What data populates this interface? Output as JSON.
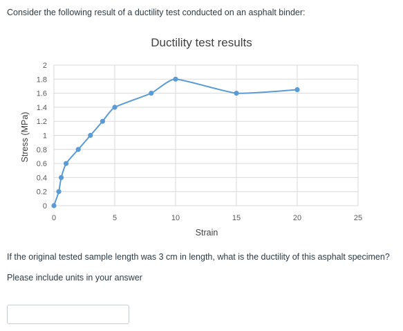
{
  "question": {
    "intro": "Consider the following result of a ductility test conducted on an asphalt binder:",
    "prompt": "If the original tested sample length was 3 cm in length, what is the ductility of this asphalt specimen?",
    "hint": "Please include units in your answer",
    "answer_value": ""
  },
  "chart_data": {
    "type": "scatter",
    "title": "Ductility test results",
    "xlabel": "Strain",
    "ylabel": "Stress (MPa)",
    "xlim": [
      0,
      25
    ],
    "ylim": [
      0,
      2
    ],
    "xticks": [
      "0",
      "5",
      "10",
      "15",
      "20",
      "25"
    ],
    "yticks": [
      "0",
      "0.2",
      "0.4",
      "0.6",
      "0.8",
      "1",
      "1.2",
      "1.4",
      "1.6",
      "1.8",
      "2"
    ],
    "grid": true,
    "smooth_line": true,
    "series_color": "#5b9bd5",
    "points": [
      {
        "x": 0,
        "y": 0
      },
      {
        "x": 0.4,
        "y": 0.2
      },
      {
        "x": 0.6,
        "y": 0.4
      },
      {
        "x": 1,
        "y": 0.6
      },
      {
        "x": 2,
        "y": 0.8
      },
      {
        "x": 3,
        "y": 1.0
      },
      {
        "x": 4,
        "y": 1.2
      },
      {
        "x": 5,
        "y": 1.4
      },
      {
        "x": 8,
        "y": 1.6
      },
      {
        "x": 10,
        "y": 1.8
      },
      {
        "x": 15,
        "y": 1.6
      },
      {
        "x": 20,
        "y": 1.65
      }
    ]
  }
}
